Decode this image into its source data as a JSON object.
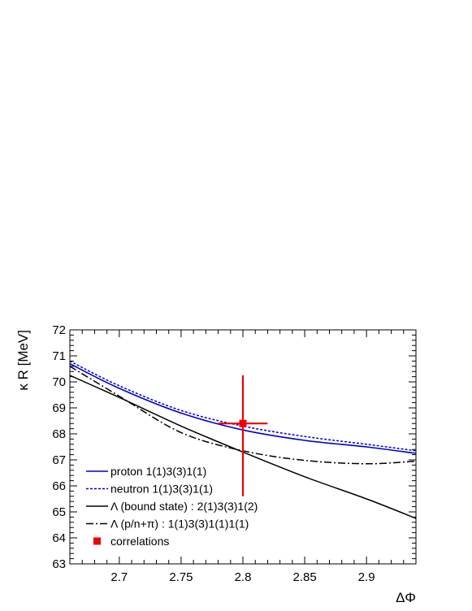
{
  "chart_data": {
    "type": "line",
    "title": "",
    "xlabel": "ΔΦ",
    "ylabel": "κ R [MeV]",
    "xlim": [
      2.66,
      2.94
    ],
    "ylim": [
      63,
      72
    ],
    "x_ticks": [
      "2.7",
      "2.75",
      "2.8",
      "2.85",
      "2.9"
    ],
    "y_ticks": [
      "63",
      "64",
      "65",
      "66",
      "67",
      "68",
      "69",
      "70",
      "71",
      "72"
    ],
    "grid": false,
    "legend_position": "bottom-left",
    "series": [
      {
        "name": "proton 1(1)3(3)1(1)",
        "style": "solid",
        "color": "#0000cc",
        "x": [
          2.66,
          2.7,
          2.75,
          2.8,
          2.85,
          2.9,
          2.94
        ],
        "y": [
          70.7,
          69.75,
          68.8,
          68.15,
          67.75,
          67.5,
          67.25
        ]
      },
      {
        "name": "neutron 1(1)3(3)1(1)",
        "style": "dashed",
        "color": "#0000cc",
        "x": [
          2.66,
          2.7,
          2.75,
          2.8,
          2.85,
          2.9,
          2.94
        ],
        "y": [
          70.8,
          69.85,
          68.9,
          68.3,
          67.9,
          67.6,
          67.35
        ]
      },
      {
        "name": "Λ (bound state) : 2(1)3(3)1(2)",
        "style": "solid",
        "color": "#000000",
        "x": [
          2.66,
          2.7,
          2.75,
          2.8,
          2.85,
          2.9,
          2.94
        ],
        "y": [
          70.25,
          69.4,
          68.3,
          67.3,
          66.35,
          65.5,
          64.75
        ]
      },
      {
        "name": "Λ (p/n+π) : 1(1)3(3)1(1)1(1)",
        "style": "dashdot",
        "color": "#000000",
        "x": [
          2.66,
          2.7,
          2.75,
          2.8,
          2.85,
          2.9,
          2.94
        ],
        "y": [
          70.6,
          69.45,
          68.05,
          67.35,
          66.98,
          66.85,
          66.95
        ]
      }
    ],
    "points": [
      {
        "name": "correlations",
        "color": "#ee0000",
        "x": 2.8,
        "y": 68.4,
        "x_err": 0.02,
        "y_err_low": 2.8,
        "y_err_high": 1.85
      }
    ]
  }
}
